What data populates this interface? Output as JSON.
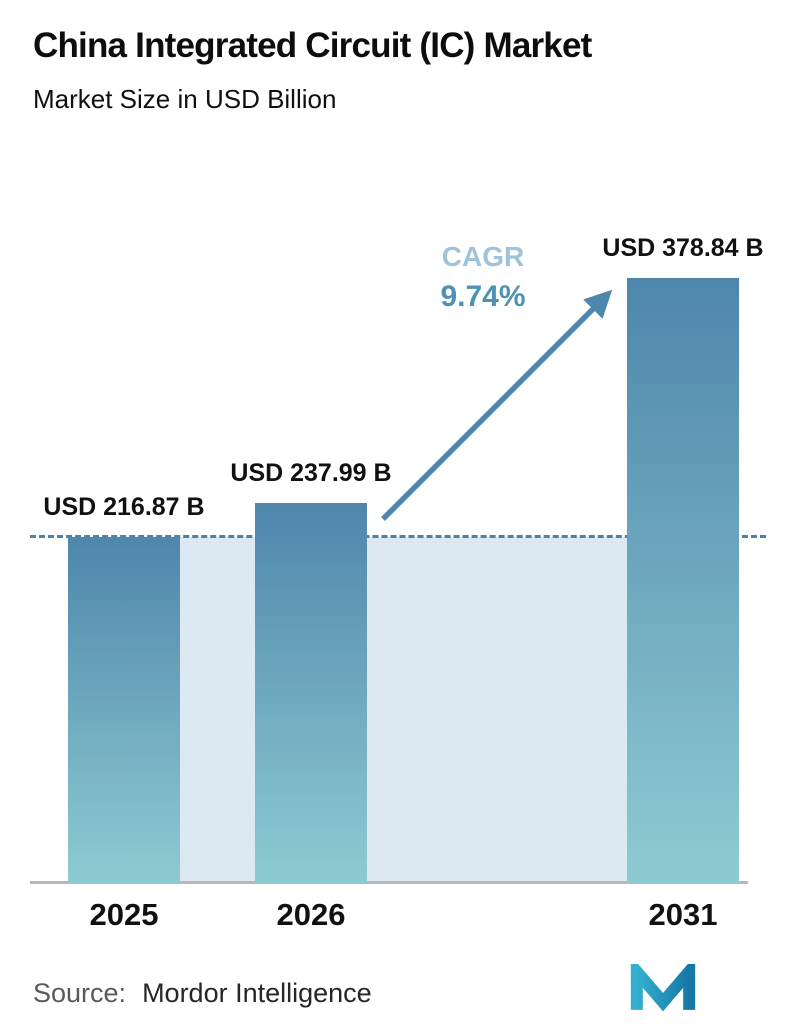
{
  "header": {
    "title": "China Integrated Circuit (IC) Market",
    "subtitle": "Market Size in USD Billion"
  },
  "chart_data": {
    "type": "bar",
    "categories": [
      "2025",
      "2026",
      "2031"
    ],
    "values": [
      216.87,
      237.99,
      378.84
    ],
    "bar_labels": [
      "USD 216.87 B",
      "USD 237.99 B",
      "USD 378.84 B"
    ],
    "title": "China Integrated Circuit (IC) Market",
    "subtitle": "Market Size in USD Billion",
    "xlabel": "",
    "ylabel": "",
    "ylim": [
      0,
      378.84
    ],
    "grid": false,
    "legend": "none",
    "annotations": {
      "cagr_label": "CAGR",
      "cagr_value": "9.74%",
      "dashed_reference_value": 216.87,
      "arrow": "from top of 2026 bar to top of 2031 bar"
    },
    "colors": {
      "bar_gradient_top": "#4f86ac",
      "bar_gradient_bottom": "#8ecbd1",
      "area_fill": "#dde9f2",
      "dashed_line": "#4c82a8",
      "arrow": "#4d87ae",
      "cagr_label_color": "#9fc3da",
      "cagr_value_color": "#4e93b4"
    }
  },
  "footer": {
    "source_label": "Source:",
    "source_value": "Mordor Intelligence",
    "logo": "mordor-intelligence-m-logo"
  }
}
